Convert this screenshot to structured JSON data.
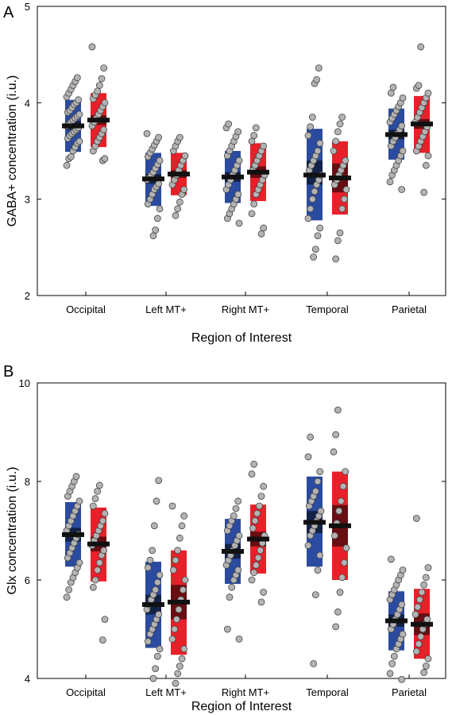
{
  "chart_data": [
    {
      "type": "box_scatter",
      "panel_label": "A",
      "xlabel": "Region of Interest",
      "ylabel": "GABA+ concentration (i.u.)",
      "ylim": [
        2,
        5
      ],
      "yticks": [
        2,
        3,
        4,
        5
      ],
      "categories": [
        "Occipital",
        "Left MT+",
        "Right MT+",
        "Temporal",
        "Parietal"
      ],
      "colors": {
        "series1": "#2b4ba0",
        "series2": "#e8202a"
      },
      "groups": [
        {
          "series1": {
            "mean": 3.76,
            "ci": [
              3.72,
              3.81
            ],
            "sd": [
              3.49,
              4.03
            ],
            "points": [
              3.35,
              3.42,
              3.44,
              3.5,
              3.54,
              3.58,
              3.6,
              3.63,
              3.66,
              3.68,
              3.7,
              3.72,
              3.74,
              3.76,
              3.78,
              3.8,
              3.82,
              3.84,
              3.86,
              3.88,
              3.9,
              3.92,
              3.95,
              3.98,
              4.0,
              4.03,
              4.06,
              4.1,
              4.14,
              4.18,
              4.22,
              4.26
            ]
          },
          "series2": {
            "mean": 3.82,
            "ci": [
              3.77,
              3.87
            ],
            "sd": [
              3.54,
              4.1
            ],
            "points": [
              3.4,
              3.42,
              3.5,
              3.55,
              3.6,
              3.64,
              3.68,
              3.72,
              3.76,
              3.8,
              3.84,
              3.88,
              3.92,
              3.96,
              4.0,
              4.04,
              4.08,
              4.12,
              4.18,
              4.25,
              4.36,
              4.58
            ]
          }
        },
        {
          "series1": {
            "mean": 3.21,
            "ci": [
              3.16,
              3.26
            ],
            "sd": [
              2.93,
              3.48
            ],
            "points": [
              2.62,
              2.68,
              2.8,
              2.9,
              2.95,
              3.0,
              3.05,
              3.1,
              3.13,
              3.16,
              3.2,
              3.22,
              3.25,
              3.28,
              3.32,
              3.36,
              3.4,
              3.44,
              3.48,
              3.52,
              3.56,
              3.6,
              3.64,
              3.68
            ]
          },
          "series2": {
            "mean": 3.26,
            "ci": [
              3.22,
              3.3
            ],
            "sd": [
              3.04,
              3.48
            ],
            "points": [
              2.83,
              2.9,
              2.97,
              3.05,
              3.1,
              3.15,
              3.2,
              3.25,
              3.3,
              3.35,
              3.4,
              3.45,
              3.5,
              3.55,
              3.6,
              3.64
            ]
          }
        },
        {
          "series1": {
            "mean": 3.23,
            "ci": [
              3.18,
              3.28
            ],
            "sd": [
              2.96,
              3.5
            ],
            "points": [
              2.75,
              2.8,
              2.85,
              2.9,
              2.95,
              3.0,
              3.05,
              3.1,
              3.15,
              3.2,
              3.25,
              3.3,
              3.35,
              3.4,
              3.45,
              3.5,
              3.55,
              3.6,
              3.65,
              3.7,
              3.74,
              3.78
            ]
          },
          "series2": {
            "mean": 3.28,
            "ci": [
              3.22,
              3.34
            ],
            "sd": [
              2.98,
              3.58
            ],
            "points": [
              2.64,
              2.7,
              2.85,
              2.95,
              3.05,
              3.1,
              3.15,
              3.2,
              3.25,
              3.3,
              3.35,
              3.4,
              3.45,
              3.5,
              3.55,
              3.6,
              3.66,
              3.74
            ]
          }
        },
        {
          "series1": {
            "mean": 3.25,
            "ci": [
              3.15,
              3.4
            ],
            "sd": [
              2.78,
              3.73
            ],
            "points": [
              2.4,
              2.48,
              2.62,
              2.7,
              2.8,
              2.9,
              3.0,
              3.08,
              3.15,
              3.2,
              3.25,
              3.3,
              3.35,
              3.4,
              3.45,
              3.5,
              3.58,
              3.66,
              3.75,
              3.85,
              4.2,
              4.24,
              4.36
            ]
          },
          "series2": {
            "mean": 3.22,
            "ci": [
              3.07,
              3.37
            ],
            "sd": [
              2.84,
              3.6
            ],
            "points": [
              2.38,
              2.57,
              2.65,
              2.9,
              3.0,
              3.1,
              3.15,
              3.2,
              3.25,
              3.3,
              3.35,
              3.4,
              3.5,
              3.6,
              3.7,
              3.78,
              3.85
            ]
          }
        },
        {
          "series1": {
            "mean": 3.67,
            "ci": [
              3.62,
              3.72
            ],
            "sd": [
              3.41,
              3.94
            ],
            "points": [
              3.1,
              3.18,
              3.25,
              3.3,
              3.35,
              3.4,
              3.45,
              3.5,
              3.55,
              3.6,
              3.64,
              3.68,
              3.72,
              3.76,
              3.8,
              3.84,
              3.88,
              3.92,
              3.96,
              4.0,
              4.05,
              4.1,
              4.16
            ]
          },
          "series2": {
            "mean": 3.78,
            "ci": [
              3.73,
              3.83
            ],
            "sd": [
              3.48,
              4.07
            ],
            "points": [
              3.07,
              3.35,
              3.45,
              3.5,
              3.55,
              3.6,
              3.65,
              3.7,
              3.75,
              3.8,
              3.85,
              3.9,
              3.95,
              4.0,
              4.05,
              4.1,
              4.15,
              4.18,
              4.58
            ]
          }
        }
      ]
    },
    {
      "type": "box_scatter",
      "panel_label": "B",
      "xlabel": "Region of Interest",
      "ylabel": "Glx concentration (i.u.)",
      "ylim": [
        4,
        10
      ],
      "yticks": [
        4,
        6,
        8,
        10
      ],
      "categories": [
        "Occipital",
        "Left MT+",
        "Right MT+",
        "Temporal",
        "Parietal"
      ],
      "colors": {
        "series1": "#2b4ba0",
        "series2": "#e8202a"
      },
      "groups": [
        {
          "series1": {
            "mean": 6.92,
            "ci": [
              6.78,
              7.06
            ],
            "sd": [
              6.27,
              7.58
            ],
            "points": [
              5.65,
              5.8,
              5.95,
              6.05,
              6.15,
              6.25,
              6.35,
              6.45,
              6.55,
              6.65,
              6.75,
              6.85,
              6.92,
              7.0,
              7.1,
              7.2,
              7.3,
              7.4,
              7.5,
              7.6,
              7.7,
              7.8,
              7.9,
              8.0,
              8.1
            ]
          },
          "series2": {
            "mean": 6.73,
            "ci": [
              6.58,
              6.88
            ],
            "sd": [
              5.97,
              7.47
            ],
            "points": [
              4.78,
              5.2,
              5.85,
              6.0,
              6.2,
              6.35,
              6.5,
              6.6,
              6.7,
              6.8,
              6.9,
              7.0,
              7.1,
              7.2,
              7.35,
              7.5,
              7.65,
              7.8,
              7.92
            ]
          }
        },
        {
          "series1": {
            "mean": 5.5,
            "ci": [
              5.3,
              5.7
            ],
            "sd": [
              4.62,
              6.37
            ],
            "points": [
              4.0,
              4.2,
              4.45,
              4.6,
              4.75,
              4.9,
              5.0,
              5.1,
              5.2,
              5.3,
              5.4,
              5.5,
              5.6,
              5.7,
              5.8,
              5.95,
              6.1,
              6.25,
              6.4,
              6.6,
              7.1,
              7.6,
              8.02
            ]
          },
          "series2": {
            "mean": 5.55,
            "ci": [
              5.2,
              5.9
            ],
            "sd": [
              4.48,
              6.6
            ],
            "points": [
              3.9,
              4.1,
              4.25,
              4.4,
              4.6,
              4.8,
              5.0,
              5.2,
              5.4,
              5.6,
              5.8,
              6.0,
              6.2,
              6.4,
              6.6,
              6.85,
              7.1,
              7.3,
              7.5
            ]
          }
        },
        {
          "series1": {
            "mean": 6.58,
            "ci": [
              6.43,
              6.73
            ],
            "sd": [
              5.92,
              7.24
            ],
            "points": [
              4.8,
              5.0,
              5.65,
              5.85,
              6.0,
              6.1,
              6.2,
              6.3,
              6.4,
              6.5,
              6.6,
              6.7,
              6.8,
              6.9,
              7.0,
              7.1,
              7.2,
              7.3,
              7.45,
              7.6
            ]
          },
          "series2": {
            "mean": 6.83,
            "ci": [
              6.68,
              6.98
            ],
            "sd": [
              6.13,
              7.53
            ],
            "points": [
              5.55,
              5.75,
              6.0,
              6.15,
              6.3,
              6.45,
              6.6,
              6.75,
              6.9,
              7.05,
              7.2,
              7.35,
              7.5,
              7.7,
              7.9,
              8.15,
              8.35
            ]
          }
        },
        {
          "series1": {
            "mean": 7.17,
            "ci": [
              6.95,
              7.4
            ],
            "sd": [
              6.27,
              8.1
            ],
            "points": [
              4.3,
              5.7,
              6.2,
              6.5,
              6.7,
              6.9,
              7.0,
              7.1,
              7.2,
              7.3,
              7.4,
              7.5,
              7.6,
              7.7,
              7.8,
              8.0,
              8.2,
              8.5,
              8.9
            ]
          },
          "series2": {
            "mean": 7.1,
            "ci": [
              6.68,
              7.52
            ],
            "sd": [
              6.0,
              8.2
            ],
            "points": [
              5.05,
              5.35,
              5.75,
              6.05,
              6.35,
              6.65,
              6.9,
              7.15,
              7.4,
              7.6,
              7.9,
              8.2,
              8.6,
              8.95,
              9.45
            ]
          }
        },
        {
          "series1": {
            "mean": 5.17,
            "ci": [
              5.05,
              5.3
            ],
            "sd": [
              4.57,
              5.77
            ],
            "points": [
              3.98,
              4.1,
              4.3,
              4.45,
              4.6,
              4.7,
              4.8,
              4.9,
              5.0,
              5.1,
              5.2,
              5.3,
              5.4,
              5.5,
              5.6,
              5.7,
              5.8,
              5.9,
              6.0,
              6.1,
              6.2,
              6.42
            ]
          },
          "series2": {
            "mean": 5.1,
            "ci": [
              4.88,
              5.32
            ],
            "sd": [
              4.4,
              5.82
            ],
            "points": [
              4.12,
              4.25,
              4.4,
              4.55,
              4.7,
              4.85,
              5.0,
              5.1,
              5.2,
              5.3,
              5.45,
              5.6,
              5.75,
              5.9,
              6.05,
              6.25,
              7.25
            ]
          }
        }
      ]
    }
  ]
}
